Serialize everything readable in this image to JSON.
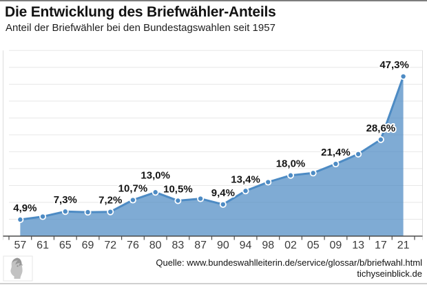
{
  "header": {
    "title": "Die Entwicklung des Briefwähler-Anteils",
    "subtitle": "Anteil der Briefwähler bei den Bundestagswahlen seit 1957"
  },
  "footer": {
    "source": "Quelle: www.bundeswahlleiterin.de/service/glossar/b/briefwahl.html",
    "site": "tichyseinblick.de",
    "logo": "tichys-einblick-classical-head-logo"
  },
  "colors": {
    "line_blue": "#4d8bc4",
    "area_fill": "rgba(77,139,196,0.72)",
    "marker_fill": "#4d8bc4",
    "marker_ring": "#ffffff",
    "gridline": "#e7e7e7",
    "plot_border": "#dcdcdc",
    "axis": "#4a4a4a",
    "tick_label": "#3a3a3a",
    "data_label": "#151515",
    "data_label_halo": "#ffffff"
  },
  "chart_data": {
    "type": "area",
    "title": "Die Entwicklung des Briefwähler-Anteils",
    "subtitle": "Anteil der Briefwähler bei den Bundestagswahlen seit 1957",
    "categories": [
      "57",
      "61",
      "65",
      "69",
      "72",
      "76",
      "80",
      "83",
      "87",
      "90",
      "94",
      "98",
      "02",
      "05",
      "09",
      "13",
      "17",
      "21"
    ],
    "years": [
      1957,
      1961,
      1965,
      1969,
      1972,
      1976,
      1980,
      1983,
      1987,
      1990,
      1994,
      1998,
      2002,
      2005,
      2009,
      2013,
      2017,
      2021
    ],
    "values": [
      4.9,
      5.8,
      7.3,
      7.1,
      7.2,
      10.7,
      13.0,
      10.5,
      11.1,
      9.4,
      13.4,
      16.0,
      18.0,
      18.7,
      21.4,
      24.3,
      28.6,
      47.3
    ],
    "point_labels": [
      "4,9%",
      null,
      "7,3%",
      null,
      "7,2%",
      "10,7%",
      "13,0%",
      "10,5%",
      null,
      "9,4%",
      "13,4%",
      null,
      "18,0%",
      null,
      "21,4%",
      null,
      "28,6%",
      "47,3%"
    ],
    "unit": "%",
    "xlabel": "",
    "ylabel": "",
    "ylim": [
      0,
      55
    ],
    "grid_step": 5,
    "grid": "horizontal",
    "y_axis_labels_visible": false,
    "legend": "none",
    "label_offsets": {
      "0": {
        "dx": 7
      },
      "6": {
        "dy": -20
      },
      "17": {
        "dx": -13
      }
    }
  }
}
